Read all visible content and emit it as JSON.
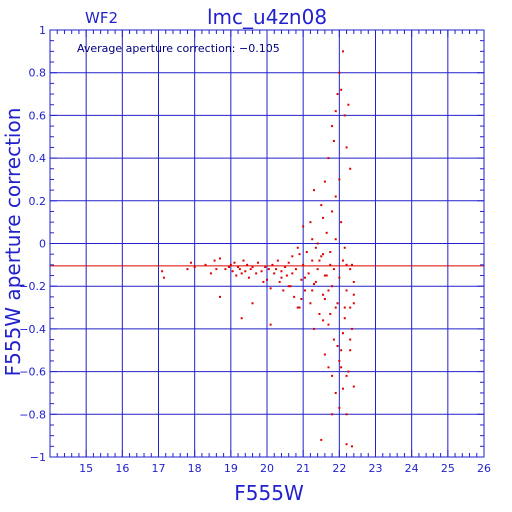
{
  "header": {
    "camera": "WF2",
    "dataset": "lmc_u4zn08"
  },
  "annotation": "Average aperture correction: −0.105",
  "chart_data": {
    "type": "scatter",
    "xlabel": "F555W",
    "ylabel": "F555W aperture correction",
    "xlim": [
      14,
      26
    ],
    "ylim": [
      -1,
      1
    ],
    "x_ticks": [
      15,
      16,
      17,
      18,
      19,
      20,
      21,
      22,
      23,
      24,
      25,
      26
    ],
    "y_ticks": [
      -1,
      -0.8,
      -0.6,
      -0.4,
      -0.2,
      0,
      0.2,
      0.4,
      0.6,
      0.8,
      1
    ],
    "x_tick_labels": [
      "15",
      "16",
      "17",
      "18",
      "19",
      "20",
      "21",
      "22",
      "23",
      "24",
      "25",
      "26"
    ],
    "y_tick_labels": [
      "−1",
      "−0.8",
      "−0.6",
      "−0.4",
      "−0.2",
      "0",
      "0.2",
      "0.4",
      "0.6",
      "0.8",
      "1"
    ],
    "grid": true,
    "reference_line": {
      "y": -0.105,
      "color": "#dd0000"
    },
    "colors": {
      "axes": "#2222cc",
      "points": "#dd0000"
    },
    "series": [
      {
        "points": [
          [
            17.1,
            -0.13
          ],
          [
            17.15,
            -0.16
          ],
          [
            17.8,
            -0.12
          ],
          [
            17.9,
            -0.09
          ],
          [
            18.0,
            -0.11
          ],
          [
            18.3,
            -0.1
          ],
          [
            18.45,
            -0.14
          ],
          [
            18.55,
            -0.08
          ],
          [
            18.6,
            -0.12
          ],
          [
            18.7,
            -0.07
          ],
          [
            18.85,
            -0.12
          ],
          [
            18.95,
            -0.11
          ],
          [
            19.0,
            -0.1
          ],
          [
            19.05,
            -0.13
          ],
          [
            19.1,
            -0.09
          ],
          [
            19.15,
            -0.15
          ],
          [
            19.2,
            -0.11
          ],
          [
            19.25,
            -0.12
          ],
          [
            19.3,
            -0.14
          ],
          [
            19.35,
            -0.08
          ],
          [
            19.4,
            -0.13
          ],
          [
            19.45,
            -0.1
          ],
          [
            19.5,
            -0.16
          ],
          [
            19.55,
            -0.12
          ],
          [
            19.6,
            -0.11
          ],
          [
            19.7,
            -0.14
          ],
          [
            19.75,
            -0.09
          ],
          [
            19.85,
            -0.13
          ],
          [
            19.95,
            -0.11
          ],
          [
            20.0,
            -0.17
          ],
          [
            20.05,
            -0.12
          ],
          [
            20.1,
            -0.21
          ],
          [
            20.15,
            -0.1
          ],
          [
            20.2,
            -0.14
          ],
          [
            20.3,
            -0.08
          ],
          [
            20.35,
            -0.18
          ],
          [
            20.4,
            -0.13
          ],
          [
            20.45,
            -0.22
          ],
          [
            20.5,
            -0.11
          ],
          [
            20.55,
            -0.15
          ],
          [
            20.6,
            -0.09
          ],
          [
            20.65,
            -0.2
          ],
          [
            20.7,
            -0.14
          ],
          [
            20.75,
            -0.25
          ],
          [
            20.8,
            -0.12
          ],
          [
            20.85,
            -0.3
          ],
          [
            20.9,
            -0.05
          ],
          [
            20.95,
            -0.17
          ],
          [
            21.0,
            -0.1
          ],
          [
            21.05,
            -0.22
          ],
          [
            21.1,
            -0.04
          ],
          [
            21.15,
            -0.14
          ],
          [
            21.2,
            -0.28
          ],
          [
            21.25,
            -0.08
          ],
          [
            21.3,
            -0.19
          ],
          [
            21.35,
            -0.02
          ],
          [
            21.4,
            -0.12
          ],
          [
            21.45,
            -0.33
          ],
          [
            21.5,
            -0.06
          ],
          [
            21.55,
            -0.24
          ],
          [
            21.6,
            -0.15
          ],
          [
            21.65,
            0.05
          ],
          [
            21.7,
            -0.38
          ],
          [
            21.75,
            -0.1
          ],
          [
            21.8,
            -0.2
          ],
          [
            21.85,
            -0.45
          ],
          [
            21.9,
            0.02
          ],
          [
            21.95,
            -0.28
          ],
          [
            22.0,
            -0.16
          ],
          [
            22.05,
            -0.5
          ],
          [
            22.1,
            -0.08
          ],
          [
            22.15,
            -0.35
          ],
          [
            22.2,
            -0.22
          ],
          [
            22.25,
            -0.6
          ],
          [
            22.3,
            -0.12
          ],
          [
            22.35,
            -0.4
          ],
          [
            22.4,
            -0.28
          ],
          [
            21.2,
            0.1
          ],
          [
            21.3,
            0.25
          ],
          [
            21.5,
            0.18
          ],
          [
            21.6,
            0.29
          ],
          [
            21.8,
            0.15
          ],
          [
            21.9,
            0.22
          ],
          [
            22.0,
            0.3
          ],
          [
            22.05,
            0.1
          ],
          [
            21.7,
            0.4
          ],
          [
            21.8,
            0.55
          ],
          [
            21.85,
            0.48
          ],
          [
            21.9,
            0.62
          ],
          [
            22.0,
            0.8
          ],
          [
            22.05,
            0.72
          ],
          [
            22.1,
            0.9
          ],
          [
            22.15,
            0.6
          ],
          [
            22.2,
            0.45
          ],
          [
            22.3,
            0.35
          ],
          [
            22.25,
            0.65
          ],
          [
            21.95,
            0.7
          ],
          [
            21.6,
            -0.52
          ],
          [
            21.7,
            -0.58
          ],
          [
            21.8,
            -0.62
          ],
          [
            21.9,
            -0.7
          ],
          [
            22.0,
            -0.55
          ],
          [
            22.1,
            -0.68
          ],
          [
            22.2,
            -0.62
          ],
          [
            22.3,
            -0.5
          ],
          [
            22.4,
            -0.67
          ],
          [
            21.8,
            -0.8
          ],
          [
            22.0,
            -0.77
          ],
          [
            22.2,
            -0.8
          ],
          [
            21.5,
            -0.92
          ],
          [
            22.2,
            -0.94
          ],
          [
            22.35,
            -0.95
          ],
          [
            20.9,
            -0.3
          ],
          [
            21.3,
            -0.4
          ],
          [
            21.6,
            -0.26
          ],
          [
            21.75,
            -0.33
          ],
          [
            22.3,
            -0.3
          ],
          [
            22.1,
            -0.42
          ],
          [
            21.95,
            -0.48
          ],
          [
            21.55,
            -0.36
          ],
          [
            21.25,
            -0.22
          ],
          [
            21.05,
            -0.16
          ],
          [
            20.85,
            -0.02
          ],
          [
            20.7,
            -0.06
          ],
          [
            21.4,
            0.0
          ],
          [
            21.45,
            -0.08
          ],
          [
            21.35,
            -0.18
          ],
          [
            22.4,
            -0.18
          ],
          [
            22.4,
            -0.24
          ],
          [
            22.2,
            -0.1
          ],
          [
            22.15,
            -0.02
          ],
          [
            21.9,
            -0.3
          ],
          [
            21.7,
            -0.22
          ],
          [
            21.65,
            -0.15
          ],
          [
            21.55,
            -0.05
          ],
          [
            20.95,
            -0.26
          ],
          [
            20.6,
            -0.2
          ],
          [
            20.4,
            -0.16
          ],
          [
            20.25,
            -0.12
          ],
          [
            19.6,
            -0.28
          ],
          [
            19.3,
            -0.35
          ],
          [
            18.7,
            -0.25
          ],
          [
            20.1,
            -0.38
          ],
          [
            19.9,
            -0.18
          ],
          [
            21.0,
            0.08
          ],
          [
            21.25,
            0.02
          ],
          [
            21.55,
            0.12
          ],
          [
            22.05,
            -0.58
          ],
          [
            22.3,
            -0.45
          ],
          [
            22.15,
            -0.3
          ],
          [
            21.85,
            -0.12
          ],
          [
            21.75,
            -0.04
          ],
          [
            22.35,
            -0.1
          ]
        ]
      }
    ]
  }
}
